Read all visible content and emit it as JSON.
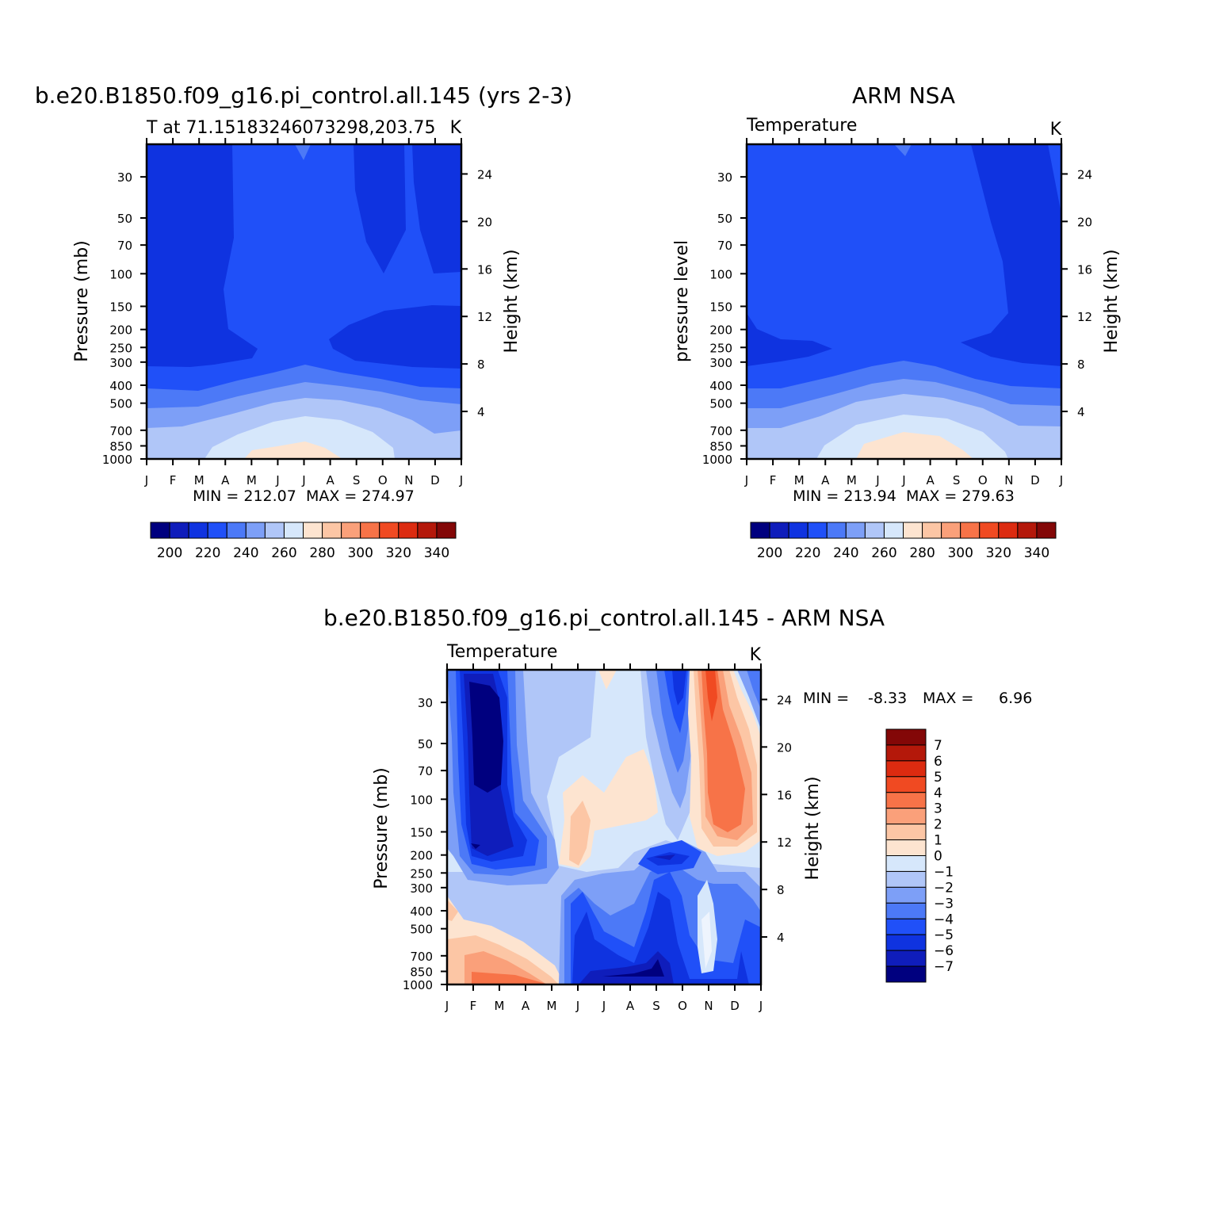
{
  "chart_data": [
    {
      "type": "heatmap",
      "title": "b.e20.B1850.f09_g16.pi_control.all.145 (yrs 2-3)",
      "subtitle_left": "T at 71.15183246073298,203.75",
      "subtitle_right": "K",
      "ylabel": "Pressure (mb)",
      "ylabel_right": "Height (km)",
      "x_ticks": [
        "J",
        "F",
        "M",
        "A",
        "M",
        "J",
        "J",
        "A",
        "S",
        "O",
        "N",
        "D",
        "J"
      ],
      "y_ticks": [
        "30",
        "50",
        "70",
        "100",
        "150",
        "200",
        "250",
        "300",
        "400",
        "500",
        "700",
        "850",
        "1000"
      ],
      "y_ticks_right": [
        "24",
        "20",
        "16",
        "12",
        "8",
        "4"
      ],
      "stats_text": "MIN = 212.07  MAX = 274.97",
      "colorbar_labels": [
        "200",
        "220",
        "240",
        "260",
        "280",
        "300",
        "320",
        "340"
      ],
      "colorbar_colors": [
        "#00007f",
        "#0f1dbb",
        "#0f33e0",
        "#2050f8",
        "#4c79f7",
        "#7d9ff7",
        "#b0c6f8",
        "#d6e7fb",
        "#fde4d0",
        "#fcc6a5",
        "#faa07a",
        "#f77348",
        "#f04a22",
        "#dc2b10",
        "#b4180a",
        "#830707"
      ],
      "min": 212.07,
      "max": 274.97
    },
    {
      "type": "heatmap",
      "title": "ARM NSA",
      "subtitle_left": "Temperature",
      "subtitle_right": "K",
      "ylabel": "pressure level",
      "ylabel_right": "Height (km)",
      "x_ticks": [
        "J",
        "F",
        "M",
        "A",
        "M",
        "J",
        "J",
        "A",
        "S",
        "O",
        "N",
        "D",
        "J"
      ],
      "y_ticks": [
        "30",
        "50",
        "70",
        "100",
        "150",
        "200",
        "250",
        "300",
        "400",
        "500",
        "700",
        "850",
        "1000"
      ],
      "y_ticks_right": [
        "24",
        "20",
        "16",
        "12",
        "8",
        "4"
      ],
      "stats_text": "MIN = 213.94  MAX = 279.63",
      "colorbar_labels": [
        "200",
        "220",
        "240",
        "260",
        "280",
        "300",
        "320",
        "340"
      ],
      "colorbar_colors": [
        "#00007f",
        "#0f1dbb",
        "#0f33e0",
        "#2050f8",
        "#4c79f7",
        "#7d9ff7",
        "#b0c6f8",
        "#d6e7fb",
        "#fde4d0",
        "#fcc6a5",
        "#faa07a",
        "#f77348",
        "#f04a22",
        "#dc2b10",
        "#b4180a",
        "#830707"
      ],
      "min": 213.94,
      "max": 279.63
    },
    {
      "type": "heatmap",
      "title": "b.e20.B1850.f09_g16.pi_control.all.145 - ARM NSA",
      "subtitle_left": "Temperature",
      "subtitle_right": "K",
      "ylabel": "Pressure (mb)",
      "ylabel_right": "Height (km)",
      "x_ticks": [
        "J",
        "F",
        "M",
        "A",
        "M",
        "J",
        "J",
        "A",
        "S",
        "O",
        "N",
        "D",
        "J"
      ],
      "y_ticks": [
        "30",
        "50",
        "70",
        "100",
        "150",
        "200",
        "250",
        "300",
        "400",
        "500",
        "700",
        "850",
        "1000"
      ],
      "y_ticks_right": [
        "24",
        "20",
        "16",
        "12",
        "8",
        "4"
      ],
      "stats_min_label": "MIN =",
      "stats_min_value": "-8.33",
      "stats_max_label": "MAX =",
      "stats_max_value": "6.96",
      "colorbar_labels": [
        "7",
        "6",
        "5",
        "4",
        "3",
        "2",
        "1",
        "0",
        "-1",
        "-2",
        "-3",
        "-4",
        "-5",
        "-6",
        "-7"
      ],
      "colorbar_colors": [
        "#830707",
        "#b4180a",
        "#dc2b10",
        "#f04a22",
        "#f77348",
        "#faa07a",
        "#fcc6a5",
        "#fde4d0",
        "#d6e7fb",
        "#b0c6f8",
        "#7d9ff7",
        "#4c79f7",
        "#2050f8",
        "#0f33e0",
        "#0f1dbb",
        "#00007f"
      ],
      "min": -8.33,
      "max": 6.96
    }
  ]
}
